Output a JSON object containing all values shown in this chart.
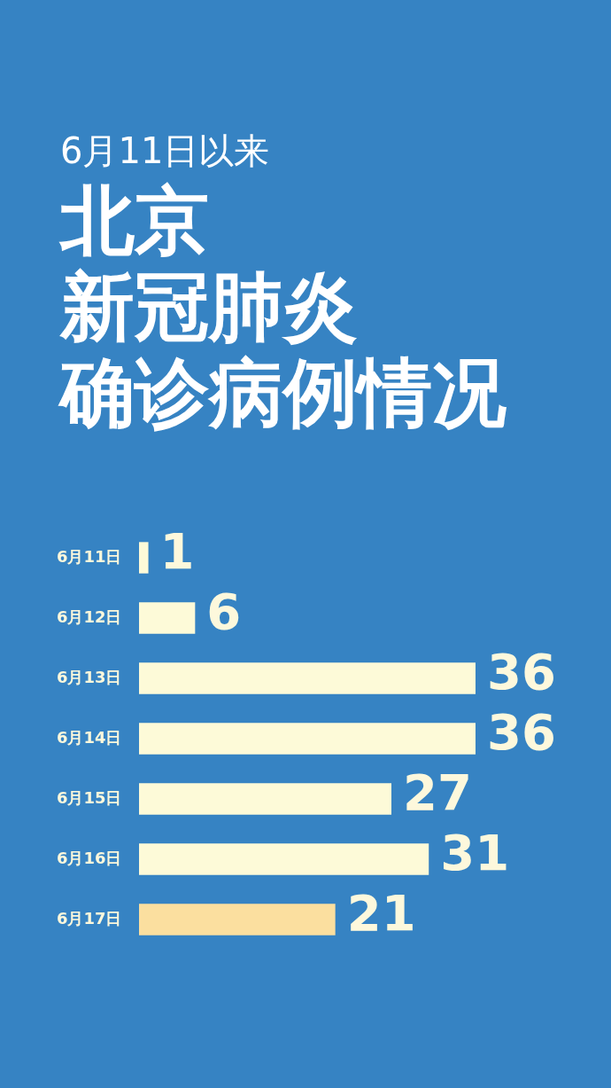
{
  "chart_data": {
    "type": "bar",
    "orientation": "horizontal",
    "subtitle": "6月11日以来",
    "title": "北京新冠肺炎确诊病例情况",
    "categories": [
      "6月11日",
      "6月12日",
      "6月13日",
      "6月14日",
      "6月15日",
      "6月16日",
      "6月17日"
    ],
    "values": [
      1,
      6,
      36,
      36,
      27,
      31,
      21
    ],
    "colors": [
      "#fdfad8",
      "#fdfad8",
      "#fdfad8",
      "#fdfad8",
      "#fdfad8",
      "#fdfad8",
      "#fbdf9f"
    ],
    "data_labels": true,
    "tick_labels": "y"
  }
}
